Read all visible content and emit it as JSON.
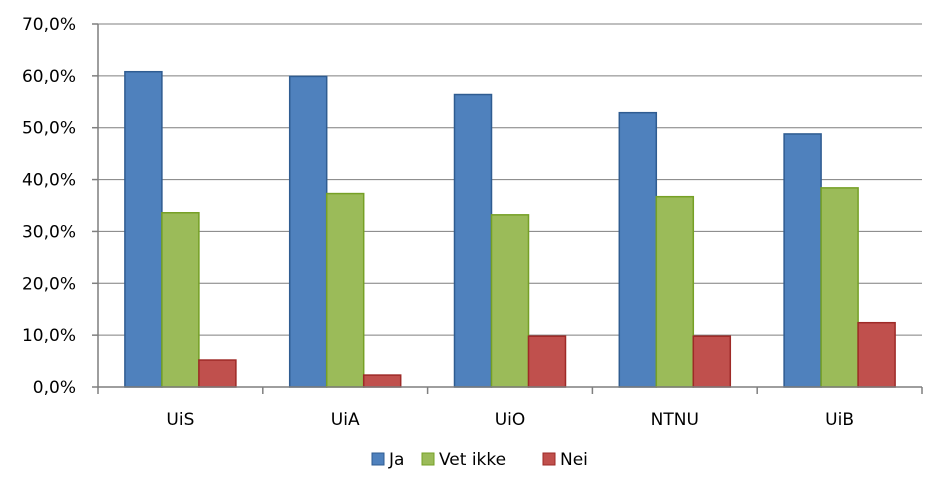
{
  "chart_data": {
    "type": "bar",
    "title": "",
    "xlabel": "",
    "ylabel": "",
    "categories": [
      "UiS",
      "UiA",
      "UiO",
      "NTNU",
      "UiB"
    ],
    "series": [
      {
        "name": "Ja",
        "values": [
          60.8,
          59.9,
          56.4,
          52.9,
          48.8
        ],
        "color": "#4F81BD",
        "edge": "#2F5C91"
      },
      {
        "name": "Vet ikke",
        "values": [
          33.6,
          37.3,
          33.2,
          36.7,
          38.4
        ],
        "color": "#9BBB59",
        "edge": "#76A026"
      },
      {
        "name": "Nei",
        "values": [
          5.2,
          2.3,
          9.8,
          9.8,
          12.4
        ],
        "color": "#C0504D",
        "edge": "#9E2A27"
      }
    ],
    "ylim": [
      0,
      70
    ],
    "yticks": [
      0,
      10,
      20,
      30,
      40,
      50,
      60,
      70
    ],
    "ytick_labels": [
      "0,0%",
      "10,0%",
      "20,0%",
      "30,0%",
      "40,0%",
      "50,0%",
      "60,0%",
      "70,0%"
    ],
    "grid": true,
    "legend_position": "bottom"
  }
}
